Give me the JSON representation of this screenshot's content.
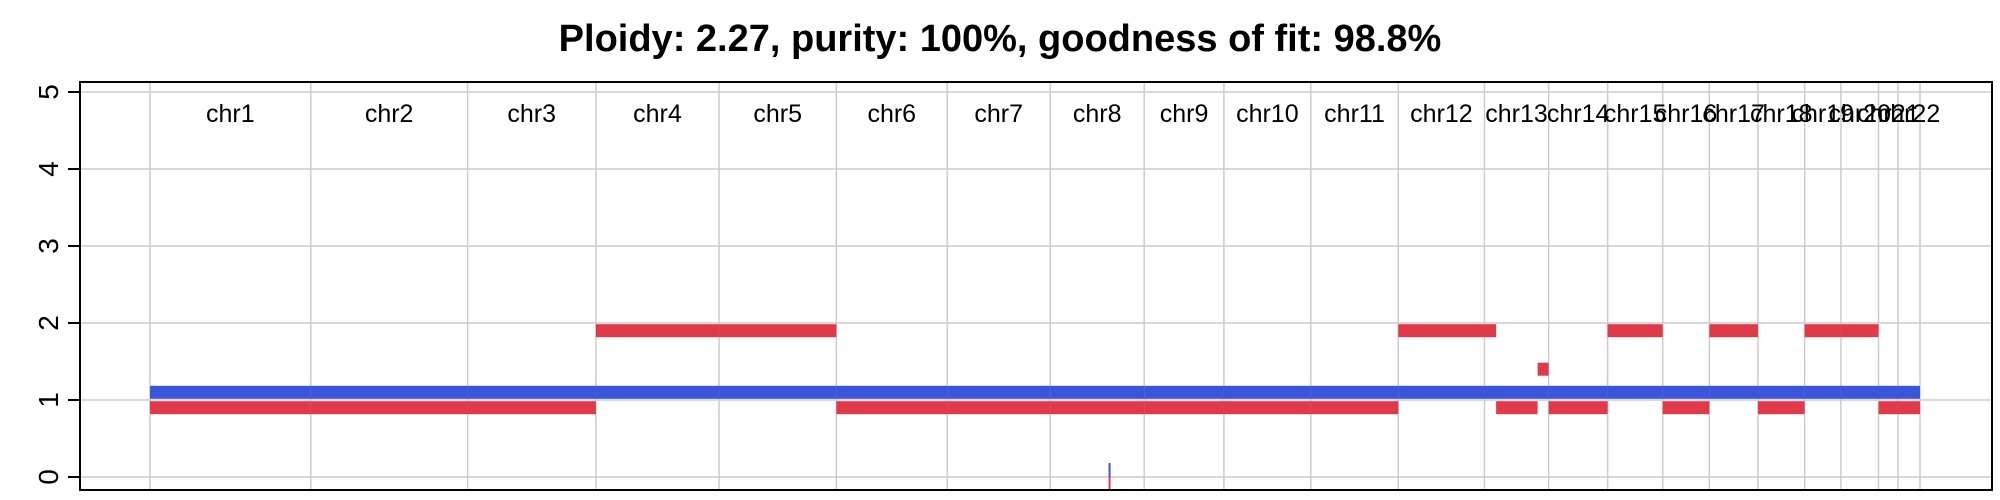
{
  "chart_data": {
    "type": "step",
    "title": "Ploidy: 2.27, purity: 100%, goodness of fit: 98.8%",
    "xlabel": "",
    "ylabel": "",
    "ylim": [
      0,
      5
    ],
    "yticks": [
      "0",
      "1",
      "2",
      "3",
      "4",
      "5"
    ],
    "grid": true,
    "legend": "none",
    "colors": {
      "major": "#e0394a",
      "minor": "#3a55d8",
      "grid": "#cccccc",
      "axis": "#000000"
    },
    "chromosomes": [
      {
        "label": "chr1",
        "length": 248
      },
      {
        "label": "chr2",
        "length": 242
      },
      {
        "label": "chr3",
        "length": 198
      },
      {
        "label": "chr4",
        "length": 190
      },
      {
        "label": "chr5",
        "length": 181
      },
      {
        "label": "chr6",
        "length": 171
      },
      {
        "label": "chr7",
        "length": 159
      },
      {
        "label": "chr8",
        "length": 145
      },
      {
        "label": "chr9",
        "length": 123
      },
      {
        "label": "chr10",
        "length": 134
      },
      {
        "label": "chr11",
        "length": 135
      },
      {
        "label": "chr12",
        "length": 133
      },
      {
        "label": "chr13",
        "length": 99
      },
      {
        "label": "chr14",
        "length": 91
      },
      {
        "label": "chr15",
        "length": 85
      },
      {
        "label": "chr16",
        "length": 72
      },
      {
        "label": "chr17",
        "length": 75
      },
      {
        "label": "chr18",
        "length": 72
      },
      {
        "label": "chr19",
        "length": 56
      },
      {
        "label": "chr20",
        "length": 58
      },
      {
        "label": "chr21",
        "length": 30
      },
      {
        "label": "chr22",
        "length": 34
      }
    ],
    "series": [
      {
        "color": "#3a55d8",
        "segments": [
          {
            "chr": "chr1",
            "start": 0,
            "end": 248,
            "value": 1.1
          },
          {
            "chr": "chr2",
            "start": 0,
            "end": 242,
            "value": 1.1
          },
          {
            "chr": "chr3",
            "start": 0,
            "end": 198,
            "value": 1.1
          },
          {
            "chr": "chr4",
            "start": 0,
            "end": 190,
            "value": 1.1
          },
          {
            "chr": "chr5",
            "start": 0,
            "end": 181,
            "value": 1.1
          },
          {
            "chr": "chr6",
            "start": 0,
            "end": 171,
            "value": 1.1
          },
          {
            "chr": "chr7",
            "start": 0,
            "end": 159,
            "value": 1.1
          },
          {
            "chr": "chr8",
            "start": 0,
            "end": 145,
            "value": 1.1
          },
          {
            "chr": "chr9",
            "start": 0,
            "end": 123,
            "value": 1.1
          },
          {
            "chr": "chr10",
            "start": 0,
            "end": 134,
            "value": 1.1
          },
          {
            "chr": "chr11",
            "start": 0,
            "end": 135,
            "value": 1.1
          },
          {
            "chr": "chr12",
            "start": 0,
            "end": 133,
            "value": 1.1
          },
          {
            "chr": "chr13",
            "start": 0,
            "end": 99,
            "value": 1.1
          },
          {
            "chr": "chr14",
            "start": 0,
            "end": 91,
            "value": 1.1
          },
          {
            "chr": "chr15",
            "start": 0,
            "end": 85,
            "value": 1.1
          },
          {
            "chr": "chr16",
            "start": 0,
            "end": 72,
            "value": 1.1
          },
          {
            "chr": "chr17",
            "start": 0,
            "end": 75,
            "value": 1.1
          },
          {
            "chr": "chr18",
            "start": 0,
            "end": 72,
            "value": 1.1
          },
          {
            "chr": "chr19",
            "start": 0,
            "end": 56,
            "value": 1.1
          },
          {
            "chr": "chr20",
            "start": 0,
            "end": 58,
            "value": 1.1
          },
          {
            "chr": "chr21",
            "start": 0,
            "end": 30,
            "value": 1.1
          },
          {
            "chr": "chr22",
            "start": 0,
            "end": 34,
            "value": 1.1
          },
          {
            "chr": "chr8",
            "start": 90,
            "end": 90.6,
            "value": 0.08
          }
        ]
      },
      {
        "color": "#e0394a",
        "segments": [
          {
            "chr": "chr1",
            "start": 0,
            "end": 248,
            "value": 0.9
          },
          {
            "chr": "chr2",
            "start": 0,
            "end": 242,
            "value": 0.9
          },
          {
            "chr": "chr3",
            "start": 0,
            "end": 198,
            "value": 0.9
          },
          {
            "chr": "chr4",
            "start": 0,
            "end": 190,
            "value": 1.9
          },
          {
            "chr": "chr5",
            "start": 0,
            "end": 181,
            "value": 1.9
          },
          {
            "chr": "chr6",
            "start": 0,
            "end": 171,
            "value": 0.9
          },
          {
            "chr": "chr7",
            "start": 0,
            "end": 159,
            "value": 0.9
          },
          {
            "chr": "chr8",
            "start": 0,
            "end": 145,
            "value": 0.9
          },
          {
            "chr": "chr9",
            "start": 0,
            "end": 123,
            "value": 0.9
          },
          {
            "chr": "chr10",
            "start": 0,
            "end": 134,
            "value": 0.9
          },
          {
            "chr": "chr11",
            "start": 0,
            "end": 135,
            "value": 0.9
          },
          {
            "chr": "chr12",
            "start": 0,
            "end": 133,
            "value": 1.9
          },
          {
            "chr": "chr13",
            "start": 0,
            "end": 18,
            "value": 1.9
          },
          {
            "chr": "chr13",
            "start": 18,
            "end": 82,
            "value": 0.9
          },
          {
            "chr": "chr13",
            "start": 82,
            "end": 99,
            "value": 1.4
          },
          {
            "chr": "chr14",
            "start": 0,
            "end": 91,
            "value": 0.9
          },
          {
            "chr": "chr15",
            "start": 0,
            "end": 85,
            "value": 1.9
          },
          {
            "chr": "chr16",
            "start": 0,
            "end": 72,
            "value": 0.9
          },
          {
            "chr": "chr17",
            "start": 0,
            "end": 75,
            "value": 1.9
          },
          {
            "chr": "chr18",
            "start": 0,
            "end": 72,
            "value": 0.9
          },
          {
            "chr": "chr19",
            "start": 0,
            "end": 56,
            "value": 1.9
          },
          {
            "chr": "chr20",
            "start": 0,
            "end": 58,
            "value": 1.9
          },
          {
            "chr": "chr21",
            "start": 0,
            "end": 30,
            "value": 0.9
          },
          {
            "chr": "chr22",
            "start": 0,
            "end": 34,
            "value": 0.9
          },
          {
            "chr": "chr8",
            "start": 90,
            "end": 90.6,
            "value": -0.08
          }
        ]
      }
    ]
  }
}
